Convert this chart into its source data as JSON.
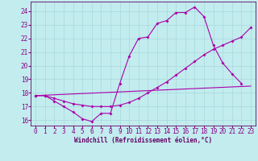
{
  "xlabel": "Windchill (Refroidissement éolien,°C)",
  "background_color": "#c2ecee",
  "grid_color": "#a8d8dc",
  "line_color": "#aa00aa",
  "xlim": [
    -0.5,
    23.5
  ],
  "ylim": [
    15.6,
    24.7
  ],
  "yticks": [
    16,
    17,
    18,
    19,
    20,
    21,
    22,
    23,
    24
  ],
  "xticks": [
    0,
    1,
    2,
    3,
    4,
    5,
    6,
    7,
    8,
    9,
    10,
    11,
    12,
    13,
    14,
    15,
    16,
    17,
    18,
    19,
    20,
    21,
    22,
    23
  ],
  "line1_x": [
    0,
    1,
    2,
    3,
    4,
    5,
    6,
    7,
    8,
    9,
    10,
    11,
    12,
    13,
    14,
    15,
    16,
    17,
    18,
    19,
    20,
    21,
    22
  ],
  "line1_y": [
    17.8,
    17.8,
    17.4,
    17.0,
    16.6,
    16.1,
    15.9,
    16.5,
    16.5,
    18.7,
    20.7,
    22.0,
    22.1,
    23.1,
    23.3,
    23.9,
    23.9,
    24.3,
    23.6,
    21.5,
    20.2,
    19.4,
    18.7
  ],
  "line2_x": [
    0,
    1,
    2,
    3,
    4,
    5,
    6,
    7,
    8,
    9,
    10,
    11,
    12,
    13,
    14,
    15,
    16,
    17,
    18,
    19,
    20,
    21,
    22,
    23
  ],
  "line2_y": [
    17.8,
    17.8,
    17.6,
    17.4,
    17.2,
    17.1,
    17.0,
    17.0,
    17.0,
    17.1,
    17.3,
    17.6,
    18.0,
    18.4,
    18.8,
    19.3,
    19.8,
    20.3,
    20.8,
    21.2,
    21.5,
    21.8,
    22.1,
    22.8
  ],
  "line3_x": [
    0,
    23
  ],
  "line3_y": [
    17.8,
    18.5
  ],
  "figsize": [
    3.2,
    2.0
  ],
  "dpi": 100,
  "font_size": 5.5,
  "xlabel_font_size": 5.5,
  "tick_color": "#880088",
  "spine_color": "#660066"
}
